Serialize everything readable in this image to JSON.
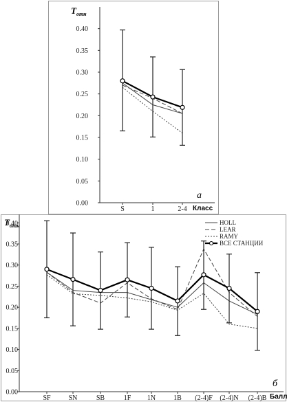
{
  "chart_data": [
    {
      "type": "line",
      "ylabel": "T",
      "ylabel_sub": "отн",
      "xlabel": "Класс",
      "panel_label": "а",
      "categories": [
        "S",
        "1",
        "2-4"
      ],
      "ylim": [
        0,
        0.45
      ],
      "yticks": [
        "0.00",
        "0.05",
        "0.10",
        "0.15",
        "0.20",
        "0.25",
        "0.30",
        "0.35",
        "0.40"
      ],
      "grid": false,
      "series": [
        {
          "key": "holl",
          "style": "solid-thin",
          "values": [
            0.275,
            0.225,
            0.205
          ]
        },
        {
          "key": "lear",
          "style": "dashed",
          "values": [
            0.27,
            0.24,
            0.205
          ]
        },
        {
          "key": "ramy",
          "style": "dotted",
          "values": [
            0.265,
            0.21,
            0.16
          ]
        },
        {
          "key": "all",
          "style": "solid-thick-marker",
          "values": [
            0.28,
            0.243,
            0.219
          ],
          "err_low": [
            0.165,
            0.151,
            0.132
          ],
          "err_high": [
            0.397,
            0.335,
            0.306
          ]
        }
      ]
    },
    {
      "type": "line",
      "ylabel": "T",
      "ylabel_sub": "отн",
      "xlabel": "Балл",
      "panel_label": "б",
      "categories": [
        "SF",
        "SN",
        "SB",
        "1F",
        "1N",
        "1B",
        "(2-4)F",
        "(2-4)N",
        "(2-4)B"
      ],
      "ylim": [
        0,
        0.42
      ],
      "yticks": [
        "0.00",
        "0.05",
        "0.10",
        "0.15",
        "0.20",
        "0.25",
        "0.30",
        "0.35",
        "0.40"
      ],
      "grid": false,
      "legend_position": "top-right",
      "series": [
        {
          "key": "holl",
          "name": "HOLL",
          "style": "solid-thin",
          "values": [
            0.283,
            0.24,
            0.235,
            0.235,
            0.218,
            0.2,
            0.258,
            0.215,
            0.183
          ]
        },
        {
          "key": "lear",
          "name": "LEAR",
          "style": "dashed",
          "values": [
            0.283,
            0.235,
            0.21,
            0.258,
            0.22,
            0.195,
            0.338,
            0.235,
            0.178
          ]
        },
        {
          "key": "ramy",
          "name": "RAMY",
          "style": "dotted",
          "values": [
            0.277,
            0.232,
            0.228,
            0.222,
            0.213,
            0.193,
            0.233,
            0.16,
            0.15
          ]
        },
        {
          "key": "all",
          "name": "ВСЕ СТАНЦИИ",
          "style": "solid-thick-marker",
          "values": [
            0.29,
            0.266,
            0.24,
            0.265,
            0.245,
            0.215,
            0.277,
            0.245,
            0.19
          ],
          "err_low": [
            0.175,
            0.156,
            0.148,
            0.177,
            0.148,
            0.133,
            0.195,
            0.163,
            0.098
          ],
          "err_high": [
            0.405,
            0.376,
            0.331,
            0.353,
            0.342,
            0.296,
            0.357,
            0.326,
            0.282
          ]
        }
      ]
    }
  ]
}
